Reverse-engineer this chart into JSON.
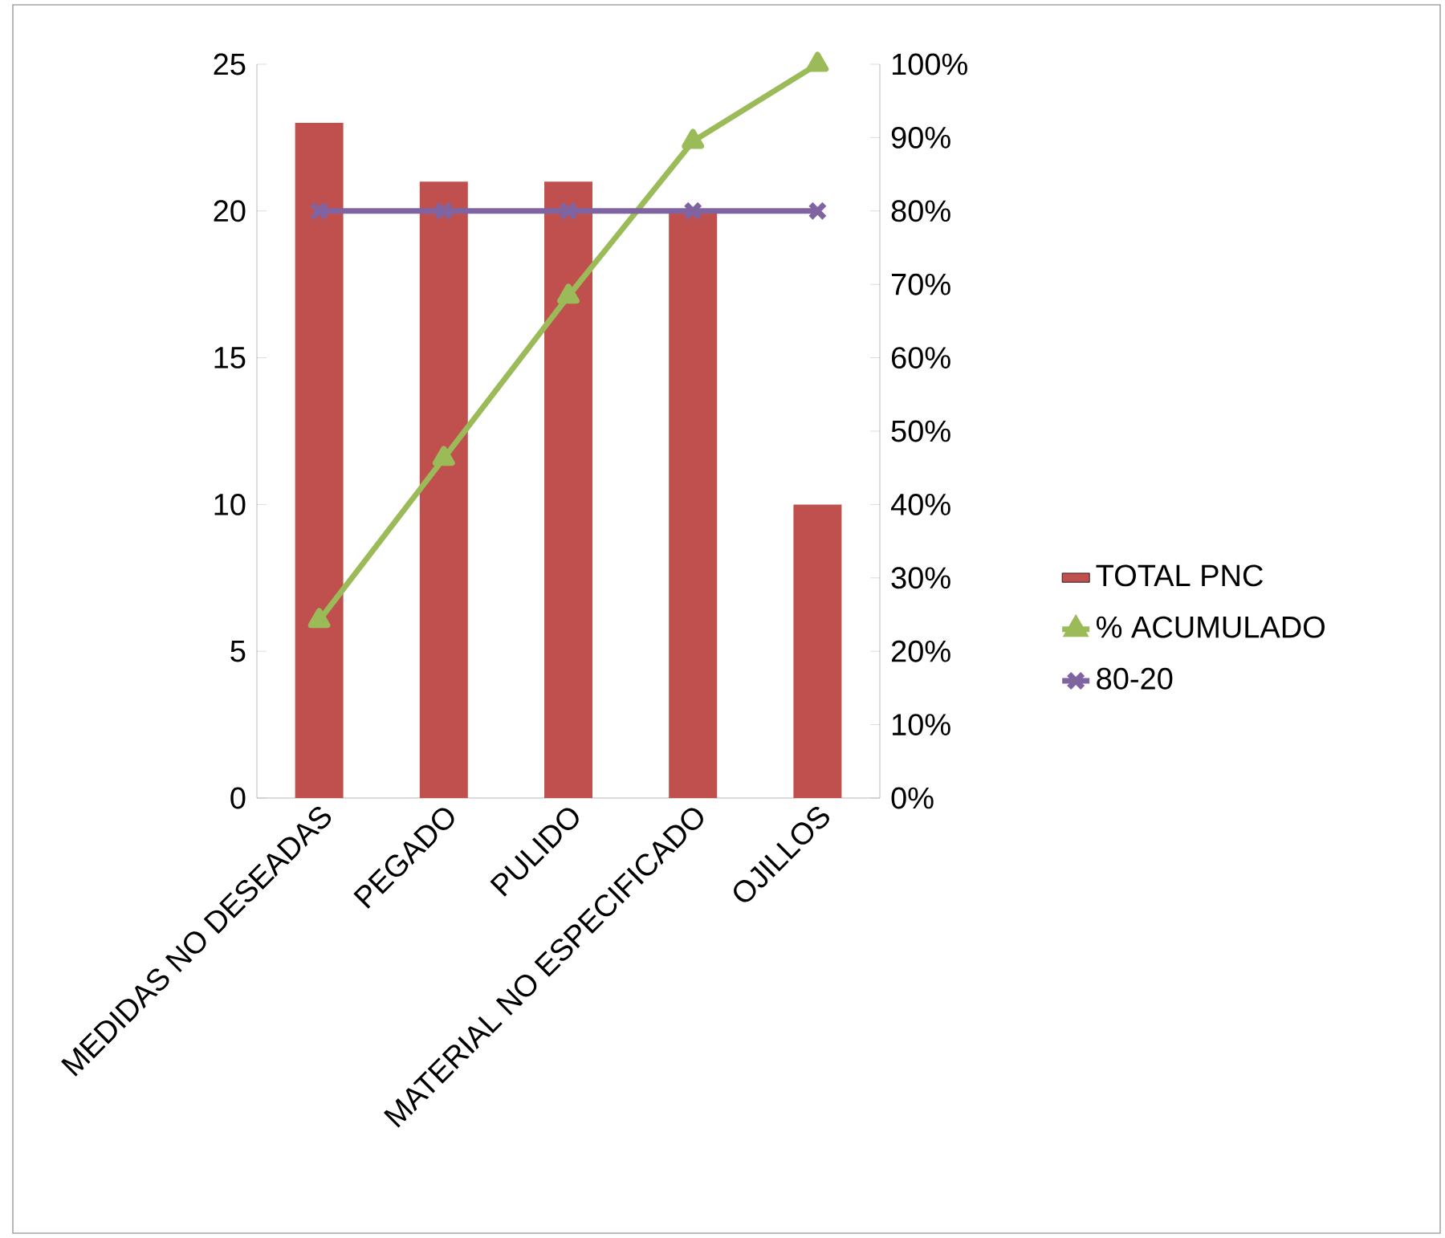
{
  "chart_data": {
    "type": "bar",
    "categories": [
      "MEDIDAS NO DESEADAS",
      "PEGADO",
      "PULIDO",
      "MATERIAL NO ESPECIFICADO",
      "OJILLOS"
    ],
    "series": [
      {
        "name": "TOTAL PNC",
        "color": "#c0504d",
        "values": [
          23,
          21,
          21,
          20,
          10
        ]
      },
      {
        "name": "% ACUMULADO",
        "type": "line",
        "axis": "y2",
        "marker": "triangle",
        "color": "#9bbb59",
        "values": [
          24.2,
          46.3,
          68.4,
          89.5,
          100
        ]
      },
      {
        "name": "80-20",
        "type": "line",
        "axis": "y2",
        "marker": "cross",
        "color": "#8064a2",
        "values": [
          80,
          80,
          80,
          80,
          80
        ]
      }
    ],
    "ylim": [
      0,
      25
    ],
    "yticks": [
      0,
      5,
      10,
      15,
      20,
      25
    ],
    "y2lim": [
      0,
      100
    ],
    "y2ticks": [
      {
        "value": 0,
        "label": "0%"
      },
      {
        "value": 10,
        "label": "10%"
      },
      {
        "value": 20,
        "label": "20%"
      },
      {
        "value": 30,
        "label": "30%"
      },
      {
        "value": 40,
        "label": "40%"
      },
      {
        "value": 50,
        "label": "50%"
      },
      {
        "value": 60,
        "label": "60%"
      },
      {
        "value": 70,
        "label": "70%"
      },
      {
        "value": 80,
        "label": "80%"
      },
      {
        "value": 90,
        "label": "90%"
      },
      {
        "value": 100,
        "label": "100%"
      }
    ],
    "legend": "right",
    "grid": false
  }
}
